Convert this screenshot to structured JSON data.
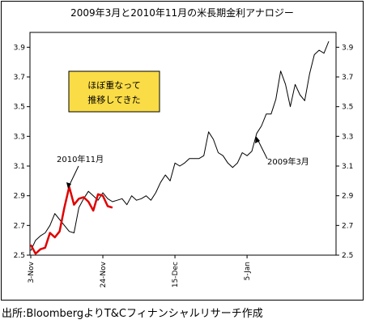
{
  "chart_data": {
    "type": "line",
    "title": "2009年3月と2010年11月の米長期金利アナロジー",
    "ylim": [
      2.5,
      4.0
    ],
    "y_ticks": [
      "2.5",
      "2.7",
      "2.9",
      "3.1",
      "3.3",
      "3.5",
      "3.7",
      "3.9"
    ],
    "x_tick_labels": [
      "3-Nov",
      "24-Nov",
      "15-Dec",
      "5-Jan"
    ],
    "x_tick_days": [
      0,
      15,
      30,
      45
    ],
    "series": [
      {
        "name": "2009年3月",
        "color": "#000000",
        "x": [
          0,
          1,
          2,
          3,
          4,
          5,
          6,
          7,
          8,
          9,
          10,
          11,
          12,
          13,
          14,
          15,
          16,
          17,
          18,
          19,
          20,
          21,
          22,
          23,
          24,
          25,
          26,
          27,
          28,
          29,
          30,
          31,
          32,
          33,
          34,
          35,
          36,
          37,
          38,
          39,
          40,
          41,
          42,
          43,
          44,
          45,
          46,
          47,
          48,
          49,
          50,
          51,
          52,
          53,
          54,
          55,
          56,
          57,
          58,
          59,
          60,
          61,
          62
        ],
        "values": [
          2.53,
          2.6,
          2.63,
          2.65,
          2.7,
          2.78,
          2.74,
          2.7,
          2.66,
          2.65,
          2.82,
          2.88,
          2.93,
          2.9,
          2.87,
          2.92,
          2.88,
          2.86,
          2.87,
          2.88,
          2.84,
          2.9,
          2.87,
          2.88,
          2.9,
          2.87,
          2.92,
          2.99,
          3.04,
          3.0,
          3.12,
          3.1,
          3.12,
          3.15,
          3.15,
          3.15,
          3.17,
          3.33,
          3.28,
          3.19,
          3.17,
          3.12,
          3.09,
          3.12,
          3.19,
          3.17,
          3.2,
          3.32,
          3.37,
          3.45,
          3.45,
          3.55,
          3.74,
          3.65,
          3.5,
          3.65,
          3.58,
          3.54,
          3.72,
          3.85,
          3.88,
          3.86,
          3.94
        ]
      },
      {
        "name": "2010年11月",
        "color": "#e00000",
        "x": [
          0,
          1,
          2,
          3,
          4,
          5,
          6,
          7,
          8,
          9,
          10,
          11,
          12,
          13,
          14,
          15,
          16,
          17
        ],
        "values": [
          2.57,
          2.51,
          2.54,
          2.55,
          2.65,
          2.62,
          2.66,
          2.82,
          2.96,
          2.84,
          2.88,
          2.89,
          2.86,
          2.8,
          2.91,
          2.9,
          2.83,
          2.82
        ]
      }
    ],
    "annotations": [
      {
        "text": "2010年11月",
        "target_series": "2010年11月"
      },
      {
        "text": "2009年3月",
        "target_series": "2009年3月"
      }
    ],
    "text_box": {
      "lines": [
        "ほぼ重なって",
        "推移してきた"
      ],
      "fill": "#fadc46"
    }
  },
  "source_note": "出所:BloombergよりT&Cフィナンシャルリサーチ作成"
}
